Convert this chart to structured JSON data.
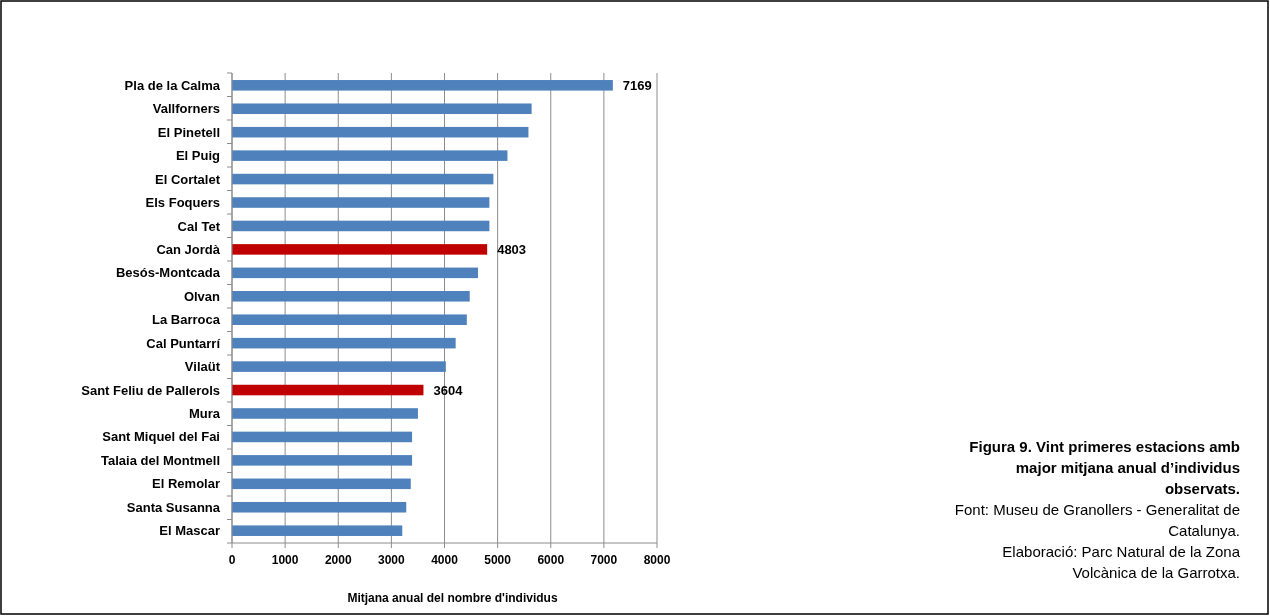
{
  "chart_data": {
    "type": "bar",
    "orientation": "horizontal",
    "xlabel": "Mitjana anual del nombre d'individus",
    "categories": [
      "Pla de la Calma",
      "Vallforners",
      "El Pinetell",
      "El Puig",
      "El Cortalet",
      "Els Foquers",
      "Cal Tet",
      "Can Jordà",
      "Besós-Montcada",
      "Olvan",
      "La Barroca",
      "Cal Puntarrí",
      "Vilaüt",
      "Sant Feliu de Pallerols",
      "Mura",
      "Sant Miquel del Fai",
      "Talaia del Montmell",
      "El Remolar",
      "Santa Susanna",
      "El Mascar"
    ],
    "values": [
      7169,
      5640,
      5580,
      5185,
      4920,
      4845,
      4845,
      4803,
      4630,
      4475,
      4420,
      4210,
      4025,
      3604,
      3500,
      3390,
      3390,
      3365,
      3280,
      3205
    ],
    "value_labels": [
      "7169",
      null,
      null,
      null,
      null,
      null,
      null,
      "4803",
      null,
      null,
      null,
      null,
      null,
      "3604",
      null,
      null,
      null,
      null,
      null,
      null
    ],
    "colors": [
      "#4f81bd",
      "#4f81bd",
      "#4f81bd",
      "#4f81bd",
      "#4f81bd",
      "#4f81bd",
      "#4f81bd",
      "#c00000",
      "#4f81bd",
      "#4f81bd",
      "#4f81bd",
      "#4f81bd",
      "#4f81bd",
      "#c00000",
      "#4f81bd",
      "#4f81bd",
      "#4f81bd",
      "#4f81bd",
      "#4f81bd",
      "#4f81bd"
    ],
    "xlim": [
      0,
      8000
    ],
    "xticks": [
      0,
      1000,
      2000,
      3000,
      4000,
      5000,
      6000,
      7000,
      8000
    ],
    "grid": "x",
    "annotations": [
      "Figura 9. Vint primeres estacions amb major mitjana anual d’individus observats.",
      "Font: Museu de Granollers - Generalitat de Catalunya.",
      "Elaboració: Parc Natural de la Zona Volcànica de la Garrotxa."
    ]
  }
}
